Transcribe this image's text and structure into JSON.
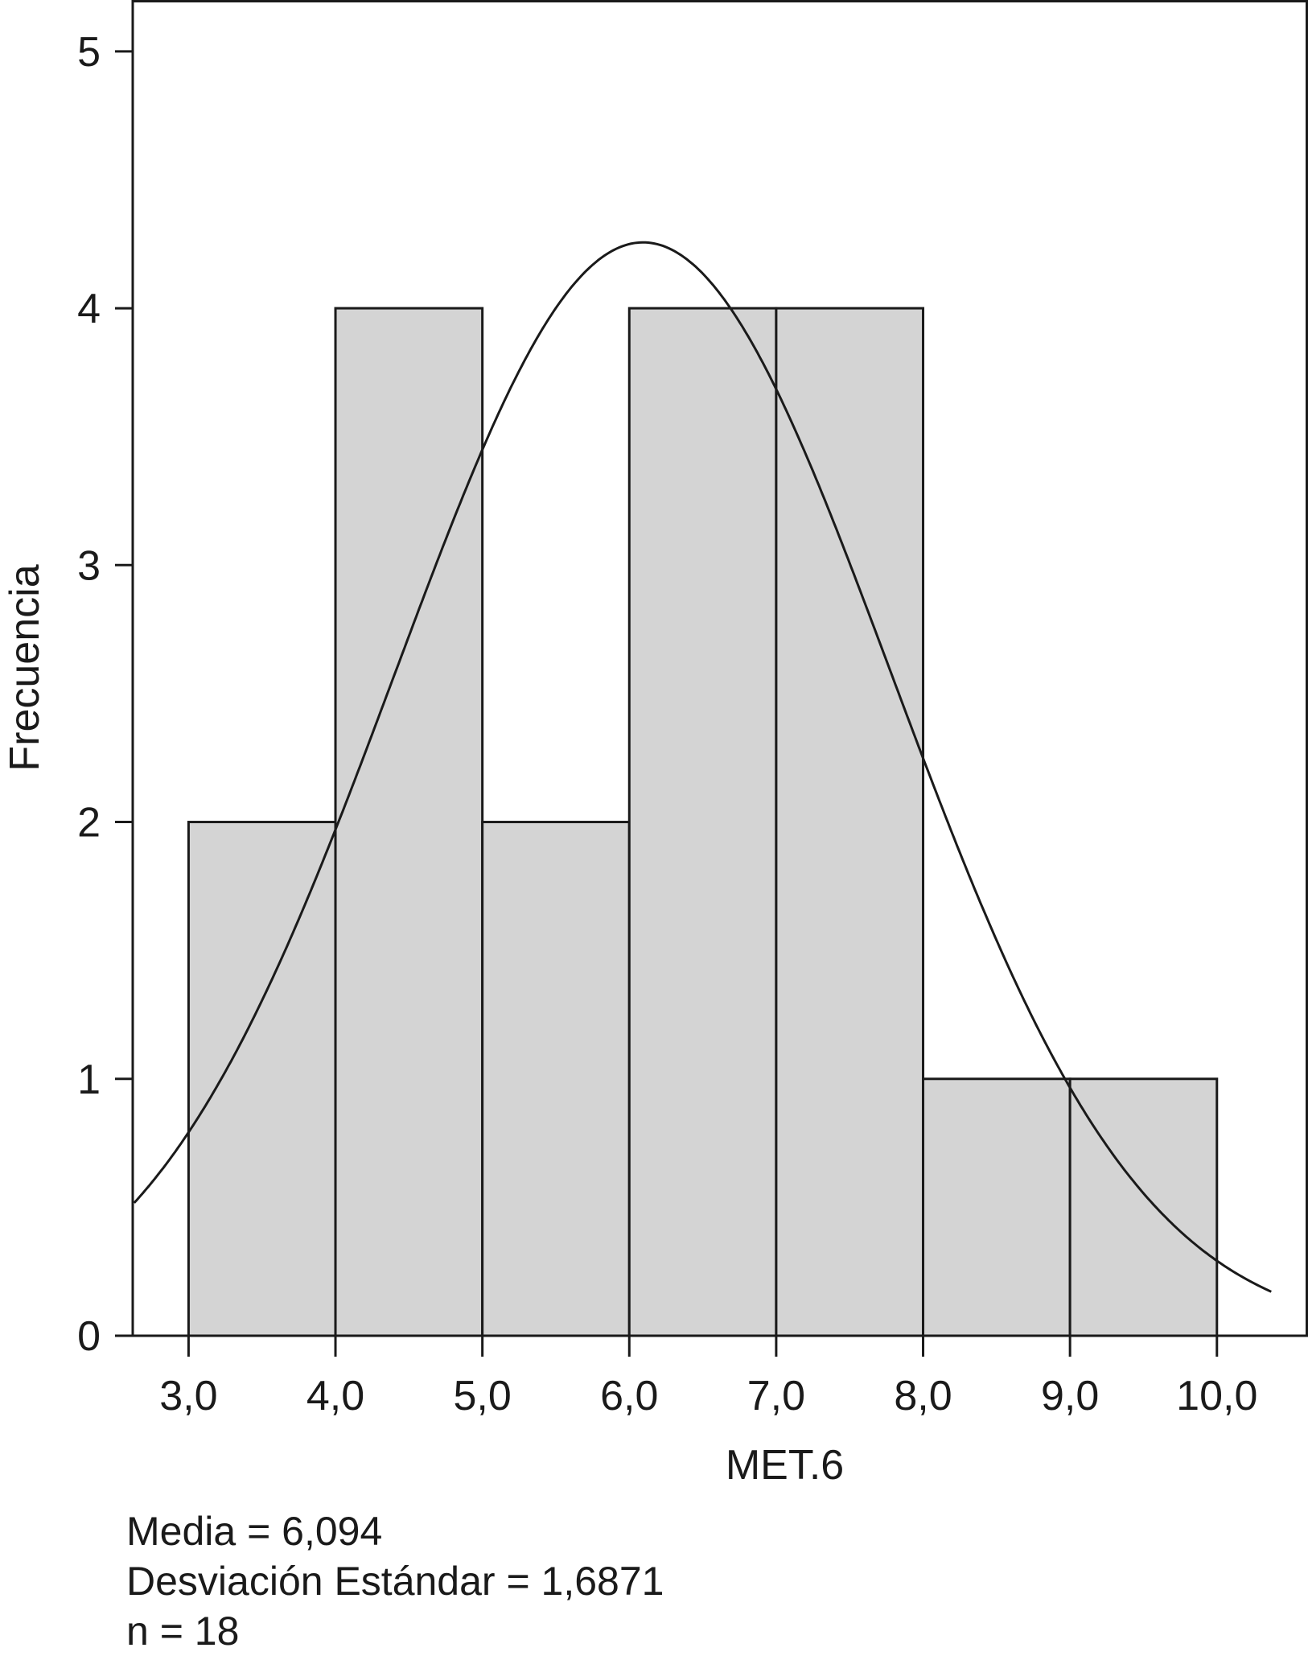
{
  "chart_data": {
    "type": "bar",
    "variant": "histogram",
    "bins": [
      {
        "start": 3.0,
        "end": 4.0,
        "count": 2
      },
      {
        "start": 4.0,
        "end": 5.0,
        "count": 4
      },
      {
        "start": 5.0,
        "end": 6.0,
        "count": 2
      },
      {
        "start": 6.0,
        "end": 7.0,
        "count": 4
      },
      {
        "start": 7.0,
        "end": 8.0,
        "count": 4
      },
      {
        "start": 8.0,
        "end": 9.0,
        "count": 1
      },
      {
        "start": 9.0,
        "end": 10.0,
        "count": 1
      }
    ],
    "normal_curve": {
      "mean": 6.094,
      "sd": 1.6871,
      "n": 18,
      "bin_width": 1.0
    },
    "xlabel": "MET.6",
    "ylabel": "Frecuencia",
    "xlim": [
      2.62,
      10.62
    ],
    "ylim": [
      0,
      5.2
    ],
    "x_ticks": [
      3.0,
      4.0,
      5.0,
      6.0,
      7.0,
      8.0,
      9.0,
      10.0
    ],
    "x_tick_labels": [
      "3,0",
      "4,0",
      "5,0",
      "6,0",
      "7,0",
      "8,0",
      "9,0",
      "10,0"
    ],
    "y_ticks": [
      0,
      1,
      2,
      3,
      4,
      5
    ],
    "y_tick_labels": [
      "0",
      "1",
      "2",
      "3",
      "4",
      "5"
    ],
    "bar_color": "#d4d4d4",
    "line_color": "#1a1a1a",
    "grid": false
  },
  "stats": {
    "mean_line": "Media = 6,094",
    "sd_line": "Desviación Estándar = 1,6871",
    "n_line": "n = 18"
  }
}
